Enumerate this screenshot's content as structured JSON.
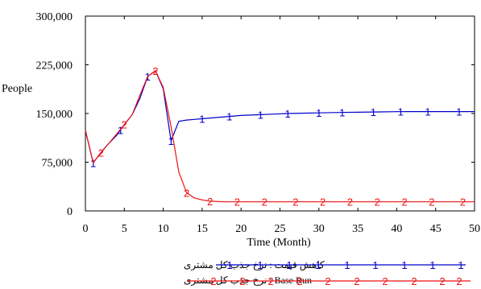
{
  "chart_data": {
    "type": "line",
    "xlabel": "Time (Month)",
    "ylabel": "People",
    "xlim": [
      0,
      50
    ],
    "ylim": [
      0,
      300000
    ],
    "xticks": [
      0,
      5,
      10,
      15,
      20,
      25,
      30,
      35,
      40,
      45,
      50
    ],
    "yticks": [
      0,
      75000,
      150000,
      225000,
      300000
    ],
    "ytick_labels": [
      "0",
      "75,000",
      "150,000",
      "225,000",
      "300,000"
    ],
    "grid": false,
    "legend_position": "bottom",
    "series": [
      {
        "name": "کاهش قیمت : نرخ جذب کل مشتری",
        "marker": "1",
        "color": "#0000cc",
        "x": [
          0,
          1,
          2,
          3,
          4,
          5,
          6,
          7,
          8,
          9,
          10,
          11,
          12,
          13,
          14,
          15,
          16,
          18,
          20,
          22,
          24,
          26,
          28,
          30,
          32,
          35,
          38,
          40,
          42,
          45,
          48,
          50
        ],
        "y": [
          124000,
          74000,
          90000,
          104000,
          116000,
          133000,
          148000,
          173000,
          207000,
          216000,
          188000,
          108000,
          138000,
          140000,
          141000,
          142000,
          143000,
          145000,
          147000,
          148000,
          149000,
          150000,
          150500,
          151000,
          151500,
          152000,
          152500,
          152800,
          153000,
          153000,
          153000,
          153000
        ],
        "marker_x": [
          1,
          4.5,
          8,
          11,
          15,
          18.5,
          22.5,
          26,
          30,
          33,
          37,
          40.5,
          44,
          48
        ]
      },
      {
        "name": "Base Run : نرخ جذب کل مشتری",
        "marker": "2",
        "color": "#ee1111",
        "x": [
          0,
          1,
          2,
          3,
          4,
          5,
          6,
          7,
          8,
          9,
          10,
          11,
          12,
          13,
          14,
          15,
          16,
          18,
          20,
          25,
          30,
          35,
          40,
          45,
          50
        ],
        "y": [
          124000,
          74000,
          90000,
          104000,
          118000,
          133000,
          148000,
          178000,
          207000,
          216000,
          190000,
          130000,
          60000,
          28000,
          20000,
          17000,
          15000,
          14000,
          14000,
          14000,
          14000,
          14000,
          14000,
          14000,
          14000
        ],
        "marker_x": [
          2,
          5,
          9,
          13,
          16,
          19.5,
          23,
          27,
          30.5,
          34,
          37.5,
          41,
          44.5,
          48.5
        ]
      }
    ]
  }
}
